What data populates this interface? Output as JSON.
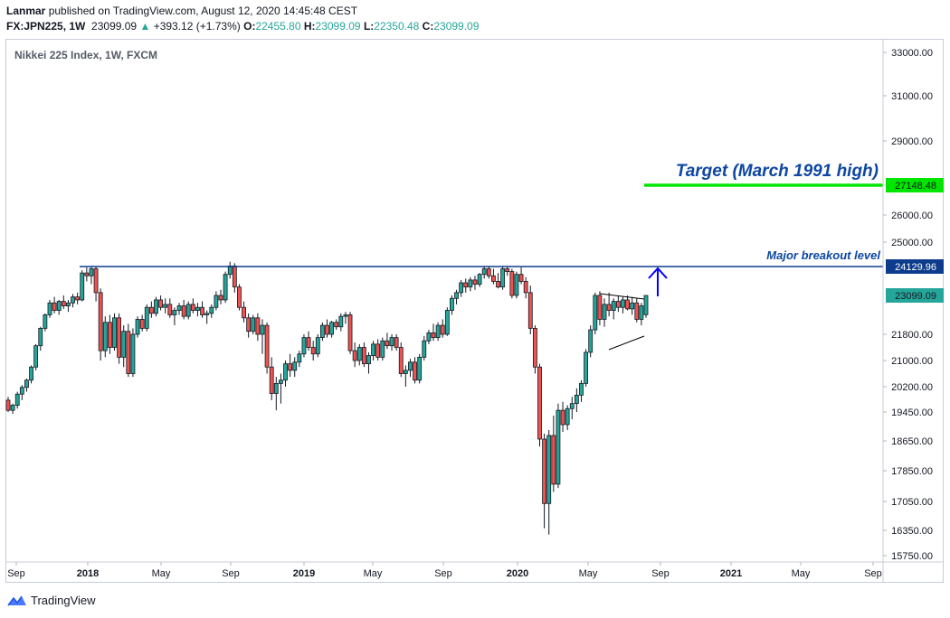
{
  "header": {
    "author": "Lanmar",
    "published_text": "published on TradingView.com, August 12, 2020 14:45:48 CEST",
    "symbol": "FX:JPN225, 1W",
    "last": "23099.09",
    "change": "+393.12 (+1.73%)",
    "o_label": "O:",
    "o_value": "22455.80",
    "h_label": "H:",
    "h_value": "23099.09",
    "l_label": "L:",
    "l_value": "22350.48",
    "c_label": "C:",
    "c_value": "23099.09"
  },
  "chart_title": "Nikkei 225 Index, 1W, FXCM",
  "brand": "TradingView",
  "colors": {
    "up": "#26a69a",
    "down": "#ef5350",
    "candle_border": "#131722",
    "breakout": "#0d3c8c",
    "target": "#00e600",
    "target_text": "#0d47a1",
    "arrow": "#0000ff"
  },
  "chart_data": {
    "type": "candlestick",
    "title": "Nikkei 225 Index, 1W, FXCM",
    "y_ticks": [
      "33000.00",
      "31000.00",
      "29000.00",
      "26000.00",
      "25000.00",
      "21800.00",
      "21000.00",
      "20200.00",
      "19450.00",
      "18650.00",
      "17850.00",
      "17050.00",
      "16350.00",
      "15750.00"
    ],
    "x_ticks": [
      "Sep",
      "2018",
      "May",
      "Sep",
      "2019",
      "May",
      "Sep",
      "2020",
      "May",
      "Sep",
      "2021",
      "May",
      "Sep"
    ],
    "price_labels": [
      {
        "value": "27148.48",
        "kind": "target"
      },
      {
        "value": "24129.96",
        "kind": "breakout"
      },
      {
        "value": "23099.09",
        "kind": "last"
      }
    ],
    "annotations": {
      "target_text": "Target (March 1991 high)",
      "target_level": 27148.48,
      "breakout_text": "Major breakout level",
      "breakout_level": 24129.96
    },
    "candles": [
      [
        19800,
        19900,
        19450,
        19500
      ],
      [
        19500,
        19700,
        19400,
        19650
      ],
      [
        19650,
        20050,
        19550,
        19980
      ],
      [
        19980,
        20250,
        19800,
        20180
      ],
      [
        20180,
        20450,
        20050,
        20400
      ],
      [
        20400,
        20850,
        20300,
        20800
      ],
      [
        20800,
        21500,
        20700,
        21450
      ],
      [
        21450,
        22050,
        21300,
        22000
      ],
      [
        22000,
        22500,
        21900,
        22450
      ],
      [
        22450,
        22950,
        22350,
        22850
      ],
      [
        22850,
        23050,
        22500,
        22600
      ],
      [
        22600,
        22950,
        22450,
        22900
      ],
      [
        22900,
        23100,
        22650,
        22750
      ],
      [
        22750,
        22950,
        22550,
        22850
      ],
      [
        22850,
        23150,
        22700,
        23050
      ],
      [
        23050,
        23200,
        22800,
        22950
      ],
      [
        22950,
        24000,
        22900,
        23900
      ],
      [
        23900,
        24100,
        23600,
        23800
      ],
      [
        23800,
        24150,
        23500,
        24050
      ],
      [
        24050,
        24150,
        22900,
        23200
      ],
      [
        23200,
        23350,
        21000,
        21300
      ],
      [
        21300,
        22400,
        21100,
        22200
      ],
      [
        22200,
        22450,
        21200,
        21400
      ],
      [
        21400,
        22500,
        21300,
        22350
      ],
      [
        22350,
        22500,
        20900,
        21100
      ],
      [
        21100,
        22100,
        20800,
        21900
      ],
      [
        21900,
        22150,
        20500,
        20600
      ],
      [
        20600,
        22000,
        20500,
        21800
      ],
      [
        21800,
        22400,
        21700,
        22300
      ],
      [
        22300,
        22450,
        21900,
        22000
      ],
      [
        22000,
        22800,
        21900,
        22700
      ],
      [
        22700,
        22900,
        22350,
        22500
      ],
      [
        22500,
        23050,
        22400,
        22950
      ],
      [
        22950,
        23100,
        22600,
        22700
      ],
      [
        22700,
        23000,
        22500,
        22800
      ],
      [
        22800,
        23000,
        22350,
        22450
      ],
      [
        22450,
        22700,
        22100,
        22600
      ],
      [
        22600,
        22850,
        22450,
        22750
      ],
      [
        22750,
        22950,
        22300,
        22400
      ],
      [
        22400,
        22900,
        22300,
        22800
      ],
      [
        22800,
        23000,
        22500,
        22600
      ],
      [
        22600,
        22850,
        22400,
        22700
      ],
      [
        22700,
        22900,
        22350,
        22450
      ],
      [
        22450,
        22600,
        22150,
        22500
      ],
      [
        22500,
        22800,
        22350,
        22700
      ],
      [
        22700,
        23250,
        22600,
        23100
      ],
      [
        23100,
        23300,
        22800,
        22950
      ],
      [
        22950,
        23950,
        22850,
        23850
      ],
      [
        23850,
        24300,
        23700,
        24150
      ],
      [
        24150,
        24250,
        23200,
        23400
      ],
      [
        23400,
        23500,
        22600,
        22700
      ],
      [
        22700,
        22900,
        22200,
        22350
      ],
      [
        22350,
        22500,
        21700,
        21900
      ],
      [
        21900,
        22450,
        21800,
        22350
      ],
      [
        22350,
        22500,
        21600,
        21800
      ],
      [
        21800,
        22300,
        21200,
        22100
      ],
      [
        22100,
        22200,
        20600,
        20800
      ],
      [
        20800,
        21100,
        19800,
        20000
      ],
      [
        20000,
        20500,
        19500,
        20300
      ],
      [
        20300,
        20600,
        19700,
        20400
      ],
      [
        20400,
        21000,
        20200,
        20900
      ],
      [
        20900,
        21200,
        20500,
        20700
      ],
      [
        20700,
        21100,
        20500,
        20950
      ],
      [
        20950,
        21300,
        20800,
        21200
      ],
      [
        21200,
        21800,
        21100,
        21700
      ],
      [
        21700,
        21900,
        21300,
        21400
      ],
      [
        21400,
        21600,
        21000,
        21200
      ],
      [
        21200,
        21800,
        21100,
        21700
      ],
      [
        21700,
        22200,
        21600,
        22100
      ],
      [
        22100,
        22300,
        21700,
        21800
      ],
      [
        21800,
        22250,
        21700,
        22200
      ],
      [
        22200,
        22300,
        21950,
        22050
      ],
      [
        22050,
        22500,
        21900,
        22400
      ],
      [
        22400,
        22550,
        22150,
        22450
      ],
      [
        22450,
        22550,
        21200,
        21300
      ],
      [
        21300,
        21550,
        20800,
        21000
      ],
      [
        21000,
        21500,
        20850,
        21400
      ],
      [
        21400,
        21550,
        20800,
        20900
      ],
      [
        20900,
        21250,
        20600,
        21150
      ],
      [
        21150,
        21600,
        21000,
        21500
      ],
      [
        21500,
        21650,
        21000,
        21100
      ],
      [
        21100,
        21700,
        21000,
        21600
      ],
      [
        21600,
        21850,
        21350,
        21450
      ],
      [
        21450,
        21800,
        21300,
        21700
      ],
      [
        21700,
        21800,
        21300,
        21400
      ],
      [
        21400,
        21550,
        20500,
        20600
      ],
      [
        20600,
        20850,
        20200,
        20700
      ],
      [
        20700,
        21050,
        20500,
        20950
      ],
      [
        20950,
        21100,
        20300,
        20400
      ],
      [
        20400,
        21200,
        20300,
        21100
      ],
      [
        21100,
        21750,
        21000,
        21600
      ],
      [
        21600,
        21950,
        21500,
        21850
      ],
      [
        21850,
        22150,
        21600,
        21700
      ],
      [
        21700,
        22200,
        21600,
        22100
      ],
      [
        22100,
        22300,
        21700,
        21800
      ],
      [
        21800,
        22700,
        21750,
        22600
      ],
      [
        22600,
        23100,
        22450,
        23000
      ],
      [
        23000,
        23300,
        22800,
        23200
      ],
      [
        23200,
        23650,
        23050,
        23550
      ],
      [
        23550,
        23700,
        23200,
        23400
      ],
      [
        23400,
        23750,
        23250,
        23650
      ],
      [
        23650,
        23800,
        23300,
        23500
      ],
      [
        23500,
        23900,
        23400,
        23850
      ],
      [
        23850,
        24150,
        23700,
        24050
      ],
      [
        24050,
        24150,
        23700,
        23800
      ],
      [
        23800,
        24050,
        23500,
        23600
      ],
      [
        23600,
        23900,
        23350,
        23400
      ],
      [
        23400,
        24150,
        23300,
        24050
      ],
      [
        24050,
        24150,
        23800,
        23950
      ],
      [
        23950,
        24050,
        23000,
        23100
      ],
      [
        23100,
        23950,
        23000,
        23850
      ],
      [
        23850,
        24100,
        23500,
        23600
      ],
      [
        23600,
        23750,
        23000,
        23200
      ],
      [
        23200,
        23450,
        21800,
        22000
      ],
      [
        22000,
        22100,
        20600,
        20800
      ],
      [
        20800,
        20900,
        18500,
        18700
      ],
      [
        18700,
        18850,
        16400,
        17000
      ],
      [
        17000,
        18950,
        16250,
        18800
      ],
      [
        18800,
        19350,
        17300,
        17500
      ],
      [
        17500,
        19700,
        17400,
        19500
      ],
      [
        19500,
        19750,
        18900,
        19100
      ],
      [
        19100,
        19650,
        18950,
        19550
      ],
      [
        19550,
        19900,
        19250,
        19700
      ],
      [
        19700,
        20150,
        19450,
        19950
      ],
      [
        19950,
        20400,
        19750,
        20300
      ],
      [
        20300,
        21350,
        20200,
        21250
      ],
      [
        21250,
        22100,
        21100,
        21950
      ],
      [
        21950,
        23200,
        21800,
        23100
      ],
      [
        23100,
        23250,
        22100,
        22300
      ],
      [
        22300,
        23000,
        22050,
        22800
      ],
      [
        22800,
        23200,
        22400,
        22600
      ],
      [
        22600,
        23000,
        22300,
        22900
      ],
      [
        22900,
        23100,
        22550,
        22700
      ],
      [
        22700,
        23050,
        22500,
        22950
      ],
      [
        22950,
        23100,
        22600,
        22650
      ],
      [
        22650,
        23050,
        22450,
        22850
      ],
      [
        22850,
        23000,
        22200,
        22300
      ],
      [
        22300,
        22850,
        22100,
        22750
      ],
      [
        22455.8,
        23099.09,
        22350.48,
        23099.09
      ]
    ]
  }
}
